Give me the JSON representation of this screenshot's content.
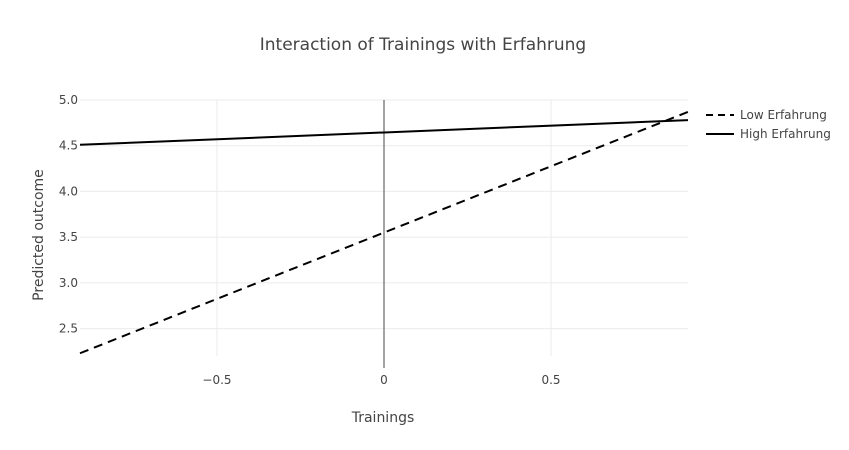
{
  "chart_data": {
    "type": "line",
    "title": "Interaction of Trainings with Erfahrung",
    "xlabel": "Trainings",
    "ylabel": "Predicted outcome",
    "xlim": [
      -0.91,
      0.91
    ],
    "ylim": [
      2.2,
      5.0
    ],
    "x_ticks": [
      -0.5,
      0,
      0.5
    ],
    "x_tick_labels": [
      "−0.5",
      "0",
      "0.5"
    ],
    "y_ticks": [
      2.5,
      3.0,
      3.5,
      4.0,
      4.5,
      5.0
    ],
    "y_tick_labels": [
      "2.5",
      "3.0",
      "3.5",
      "4.0",
      "4.5",
      "5.0"
    ],
    "grid": true,
    "legend_position": "right",
    "series": [
      {
        "name": "Low Erfahrung",
        "dash": "dash",
        "color": "#000000",
        "x": [
          -0.91,
          0.91
        ],
        "y": [
          2.23,
          4.87
        ]
      },
      {
        "name": "High Erfahrung",
        "dash": "solid",
        "color": "#000000",
        "x": [
          -0.91,
          0.91
        ],
        "y": [
          4.51,
          4.78
        ]
      }
    ]
  }
}
